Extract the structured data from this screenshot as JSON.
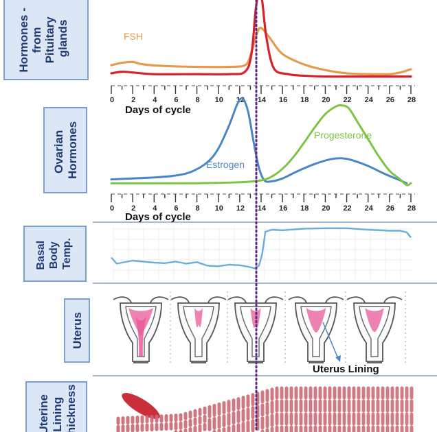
{
  "colors": {
    "fsh": "#e59a4d",
    "lh": "#d8202a",
    "estrogen": "#4a86c4",
    "progesterone": "#7cc543",
    "bbt": "#6aaed6",
    "label_box_fill": "#dce7f6",
    "label_box_stroke": "#7a9fd2",
    "label_text": "#1f3b73",
    "ovulation_line": "#5b2a86",
    "separator": "#a8b6cf",
    "lining": "#c96a73",
    "uterus_pink": "#e85a9a"
  },
  "panels": {
    "pituitary": {
      "label_lines": [
        "Hormones -",
        "from",
        "Pituitary",
        "glands"
      ],
      "axis_label": "Days of cycle"
    },
    "ovarian": {
      "label_lines": [
        "Ovarian",
        "Hormones"
      ],
      "axis_label": "Days of cycle"
    },
    "bbt": {
      "label_lines": [
        "Basal",
        "Body",
        "Temp."
      ]
    },
    "uterus": {
      "label_lines": [
        "Uterus"
      ],
      "annotation": "Uterus Lining"
    },
    "lining": {
      "label_lines": [
        "Uterine",
        "Lining",
        "Thickness"
      ]
    }
  },
  "chart_data": [
    {
      "type": "line",
      "xlabel": "Days of cycle",
      "xlim": [
        0,
        28
      ],
      "x_ticks": [
        0,
        2,
        4,
        6,
        8,
        10,
        12,
        14,
        16,
        18,
        20,
        22,
        24,
        26,
        28
      ],
      "series": [
        {
          "name": "FSH",
          "color": "#e59a4d",
          "x": [
            0,
            1,
            2,
            3,
            5,
            8,
            11,
            12.5,
            13,
            13.6,
            14,
            14.8,
            16,
            18,
            20,
            22,
            24,
            26,
            27,
            28
          ],
          "y": [
            0.16,
            0.19,
            0.2,
            0.17,
            0.15,
            0.14,
            0.14,
            0.16,
            0.28,
            0.55,
            0.62,
            0.5,
            0.3,
            0.17,
            0.1,
            0.06,
            0.05,
            0.05,
            0.07,
            0.11
          ]
        },
        {
          "name": "",
          "color": "#d8202a",
          "x": [
            0,
            1,
            2,
            4,
            8,
            11,
            12.5,
            13.1,
            13.5,
            13.8,
            14.1,
            14.5,
            15.2,
            16.5,
            18,
            20,
            24,
            28
          ],
          "y": [
            0.06,
            0.08,
            0.07,
            0.05,
            0.05,
            0.05,
            0.08,
            0.3,
            0.85,
            1.05,
            0.95,
            0.5,
            0.12,
            0.05,
            0.03,
            0.02,
            0.02,
            0.02
          ]
        }
      ]
    },
    {
      "type": "line",
      "xlabel": "Days of cycle",
      "xlim": [
        0,
        28
      ],
      "x_ticks": [
        0,
        2,
        4,
        6,
        8,
        10,
        12,
        14,
        16,
        18,
        20,
        22,
        24,
        26,
        28
      ],
      "series": [
        {
          "name": "Estrogen",
          "color": "#4a86c4",
          "x": [
            0,
            2,
            4,
            6,
            7.5,
            9,
            10,
            11,
            11.8,
            12.3,
            12.8,
            13.3,
            13.8,
            14.3,
            15,
            16,
            17.5,
            19,
            20.5,
            21.5,
            22.5,
            24,
            25.5,
            27,
            27.6
          ],
          "y": [
            0.06,
            0.07,
            0.08,
            0.1,
            0.14,
            0.24,
            0.38,
            0.62,
            0.85,
            0.9,
            0.76,
            0.45,
            0.18,
            0.05,
            0.04,
            0.07,
            0.15,
            0.22,
            0.27,
            0.28,
            0.26,
            0.2,
            0.12,
            0.05,
            0.02
          ]
        },
        {
          "name": "Progesterone",
          "color": "#7cc543",
          "x": [
            0,
            4,
            8,
            12,
            14,
            15,
            16,
            17,
            18,
            19,
            20,
            21,
            21.6,
            22.2,
            23,
            24,
            25,
            26,
            27,
            27.6,
            28
          ],
          "y": [
            0.02,
            0.02,
            0.02,
            0.03,
            0.05,
            0.09,
            0.17,
            0.29,
            0.44,
            0.6,
            0.74,
            0.82,
            0.83,
            0.8,
            0.66,
            0.48,
            0.3,
            0.15,
            0.06,
            0.0,
            0.02
          ]
        }
      ]
    },
    {
      "type": "line",
      "xlim": [
        0,
        28
      ],
      "series": [
        {
          "name": "",
          "color": "#6aaed6",
          "x": [
            0,
            0.5,
            1,
            2,
            3,
            4,
            5,
            6,
            7,
            8,
            9,
            10,
            11,
            12,
            12.8,
            13.4,
            13.8,
            14.1,
            14.4,
            15,
            16,
            18,
            20,
            22,
            24,
            26,
            27,
            27.6,
            28
          ],
          "y": [
            0.38,
            0.26,
            0.28,
            0.32,
            0.3,
            0.28,
            0.27,
            0.3,
            0.26,
            0.29,
            0.22,
            0.21,
            0.24,
            0.23,
            0.2,
            0.17,
            0.22,
            0.45,
            0.88,
            0.92,
            0.91,
            0.94,
            0.95,
            0.95,
            0.92,
            0.9,
            0.9,
            0.87,
            0.77
          ]
        }
      ]
    }
  ]
}
